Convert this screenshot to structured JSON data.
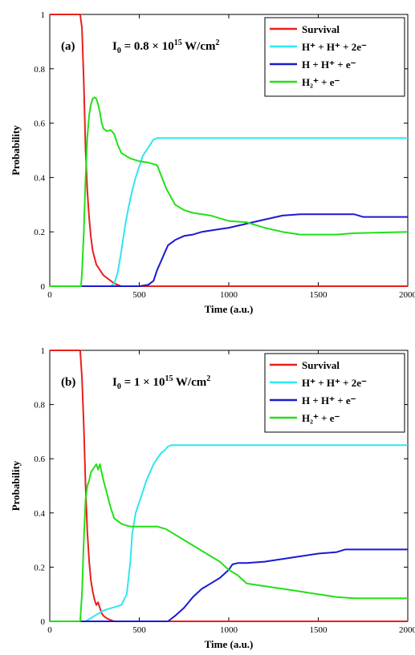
{
  "chart_data": [
    {
      "type": "line",
      "panel_label": "(a)",
      "intensity_label": {
        "prefix": "I",
        "sub": "0",
        "eq": " = 0.8 × 10",
        "exp": "15",
        "unit": " W/cm",
        "unit_exp": "2"
      },
      "xlabel": "Time (a.u.)",
      "ylabel": "Probability",
      "xlim": [
        0,
        2000
      ],
      "ylim": [
        0,
        1
      ],
      "xticks": [
        "0",
        "500",
        "1000",
        "1500",
        "2000"
      ],
      "yticks": [
        "0",
        "0.2",
        "0.4",
        "0.6",
        "0.8",
        "1"
      ],
      "legend_position": "top-right",
      "series": [
        {
          "name": "Survival",
          "color": "#e8201c",
          "x": [
            0,
            150,
            170,
            180,
            190,
            200,
            210,
            220,
            230,
            240,
            260,
            280,
            300,
            320,
            340,
            360,
            380,
            400,
            420,
            500,
            600,
            1000,
            1600,
            2000
          ],
          "y": [
            1,
            1,
            1,
            0.95,
            0.75,
            0.5,
            0.35,
            0.25,
            0.18,
            0.13,
            0.08,
            0.06,
            0.04,
            0.03,
            0.02,
            0.01,
            0.005,
            0,
            0,
            0,
            0,
            0,
            0,
            0
          ]
        },
        {
          "name": "H⁺ + H⁺ + 2e⁻",
          "color": "#2ee6f2",
          "x": [
            0,
            200,
            300,
            340,
            360,
            380,
            400,
            420,
            440,
            460,
            480,
            500,
            520,
            540,
            560,
            580,
            600,
            800,
            1000,
            1500,
            2000
          ],
          "y": [
            0,
            0,
            0,
            0,
            0.01,
            0.05,
            0.13,
            0.22,
            0.29,
            0.35,
            0.4,
            0.44,
            0.48,
            0.5,
            0.52,
            0.54,
            0.545,
            0.545,
            0.545,
            0.545,
            0.545
          ]
        },
        {
          "name": "H + H⁺ + e⁻",
          "color": "#1a1ad0",
          "x": [
            0,
            400,
            500,
            550,
            580,
            600,
            620,
            640,
            660,
            700,
            750,
            800,
            850,
            900,
            950,
            1000,
            1100,
            1200,
            1300,
            1400,
            1700,
            1750,
            2000
          ],
          "y": [
            0,
            0,
            0,
            0.005,
            0.02,
            0.06,
            0.09,
            0.12,
            0.15,
            0.17,
            0.185,
            0.19,
            0.2,
            0.205,
            0.21,
            0.215,
            0.23,
            0.245,
            0.26,
            0.265,
            0.265,
            0.255,
            0.255
          ]
        },
        {
          "name": "H₂⁺ + e⁻",
          "color": "#22e016",
          "x": [
            0,
            175,
            180,
            190,
            200,
            210,
            220,
            230,
            240,
            250,
            260,
            270,
            280,
            290,
            300,
            320,
            340,
            360,
            380,
            400,
            450,
            500,
            550,
            600,
            650,
            700,
            750,
            800,
            900,
            950,
            1000,
            1100,
            1200,
            1300,
            1400,
            1600,
            1700,
            2000
          ],
          "y": [
            0,
            0,
            0.05,
            0.2,
            0.4,
            0.55,
            0.63,
            0.67,
            0.69,
            0.695,
            0.69,
            0.67,
            0.64,
            0.6,
            0.58,
            0.57,
            0.575,
            0.56,
            0.52,
            0.49,
            0.47,
            0.46,
            0.455,
            0.445,
            0.36,
            0.3,
            0.28,
            0.27,
            0.26,
            0.25,
            0.24,
            0.235,
            0.215,
            0.2,
            0.19,
            0.19,
            0.195,
            0.2
          ]
        }
      ]
    },
    {
      "type": "line",
      "panel_label": "(b)",
      "intensity_label": {
        "prefix": "I",
        "sub": "0",
        "eq": " = 1 × 10",
        "exp": "15",
        "unit": " W/cm",
        "unit_exp": "2"
      },
      "xlabel": "Time (a.u.)",
      "ylabel": "Probability",
      "xlim": [
        0,
        2000
      ],
      "ylim": [
        0,
        1
      ],
      "xticks": [
        "0",
        "500",
        "1000",
        "1500",
        "2000"
      ],
      "yticks": [
        "0",
        "0.2",
        "0.4",
        "0.6",
        "0.8",
        "1"
      ],
      "legend_position": "top-right",
      "series": [
        {
          "name": "Survival",
          "color": "#e8201c",
          "x": [
            0,
            150,
            170,
            180,
            190,
            200,
            210,
            220,
            230,
            240,
            250,
            260,
            270,
            280,
            290,
            300,
            320,
            340,
            360,
            400,
            1000,
            2000
          ],
          "y": [
            1,
            1,
            1,
            0.9,
            0.72,
            0.5,
            0.33,
            0.22,
            0.15,
            0.11,
            0.08,
            0.06,
            0.07,
            0.05,
            0.03,
            0.02,
            0.01,
            0.005,
            0,
            0,
            0,
            0
          ]
        },
        {
          "name": "H⁺ + H⁺ + 2e⁻",
          "color": "#2ee6f2",
          "x": [
            0,
            200,
            250,
            300,
            350,
            400,
            430,
            450,
            460,
            480,
            500,
            520,
            540,
            560,
            580,
            600,
            620,
            640,
            660,
            680,
            700,
            1000,
            1500,
            2000
          ],
          "y": [
            0,
            0,
            0.02,
            0.04,
            0.05,
            0.06,
            0.1,
            0.22,
            0.32,
            0.4,
            0.44,
            0.48,
            0.52,
            0.55,
            0.58,
            0.6,
            0.62,
            0.63,
            0.645,
            0.65,
            0.65,
            0.65,
            0.65,
            0.65
          ]
        },
        {
          "name": "H + H⁺ + e⁻",
          "color": "#1a1ad0",
          "x": [
            0,
            600,
            660,
            700,
            750,
            800,
            850,
            900,
            950,
            1000,
            1020,
            1050,
            1100,
            1200,
            1300,
            1400,
            1500,
            1600,
            1650,
            2000
          ],
          "y": [
            0,
            0,
            0,
            0.02,
            0.05,
            0.09,
            0.12,
            0.14,
            0.16,
            0.19,
            0.21,
            0.215,
            0.215,
            0.22,
            0.23,
            0.24,
            0.25,
            0.255,
            0.265,
            0.265
          ]
        },
        {
          "name": "H₂⁺ + e⁻",
          "color": "#22e016",
          "x": [
            0,
            170,
            180,
            190,
            200,
            210,
            220,
            230,
            240,
            250,
            260,
            270,
            280,
            290,
            300,
            320,
            340,
            360,
            380,
            400,
            420,
            450,
            500,
            600,
            650,
            700,
            750,
            800,
            850,
            900,
            950,
            1000,
            1050,
            1100,
            1200,
            1300,
            1400,
            1500,
            1600,
            1700,
            2000
          ],
          "y": [
            0,
            0,
            0.1,
            0.3,
            0.45,
            0.5,
            0.52,
            0.55,
            0.56,
            0.57,
            0.58,
            0.56,
            0.58,
            0.55,
            0.52,
            0.47,
            0.42,
            0.38,
            0.37,
            0.36,
            0.355,
            0.35,
            0.35,
            0.35,
            0.34,
            0.32,
            0.3,
            0.28,
            0.26,
            0.24,
            0.22,
            0.19,
            0.17,
            0.14,
            0.13,
            0.12,
            0.11,
            0.1,
            0.09,
            0.085,
            0.085
          ]
        }
      ]
    }
  ]
}
